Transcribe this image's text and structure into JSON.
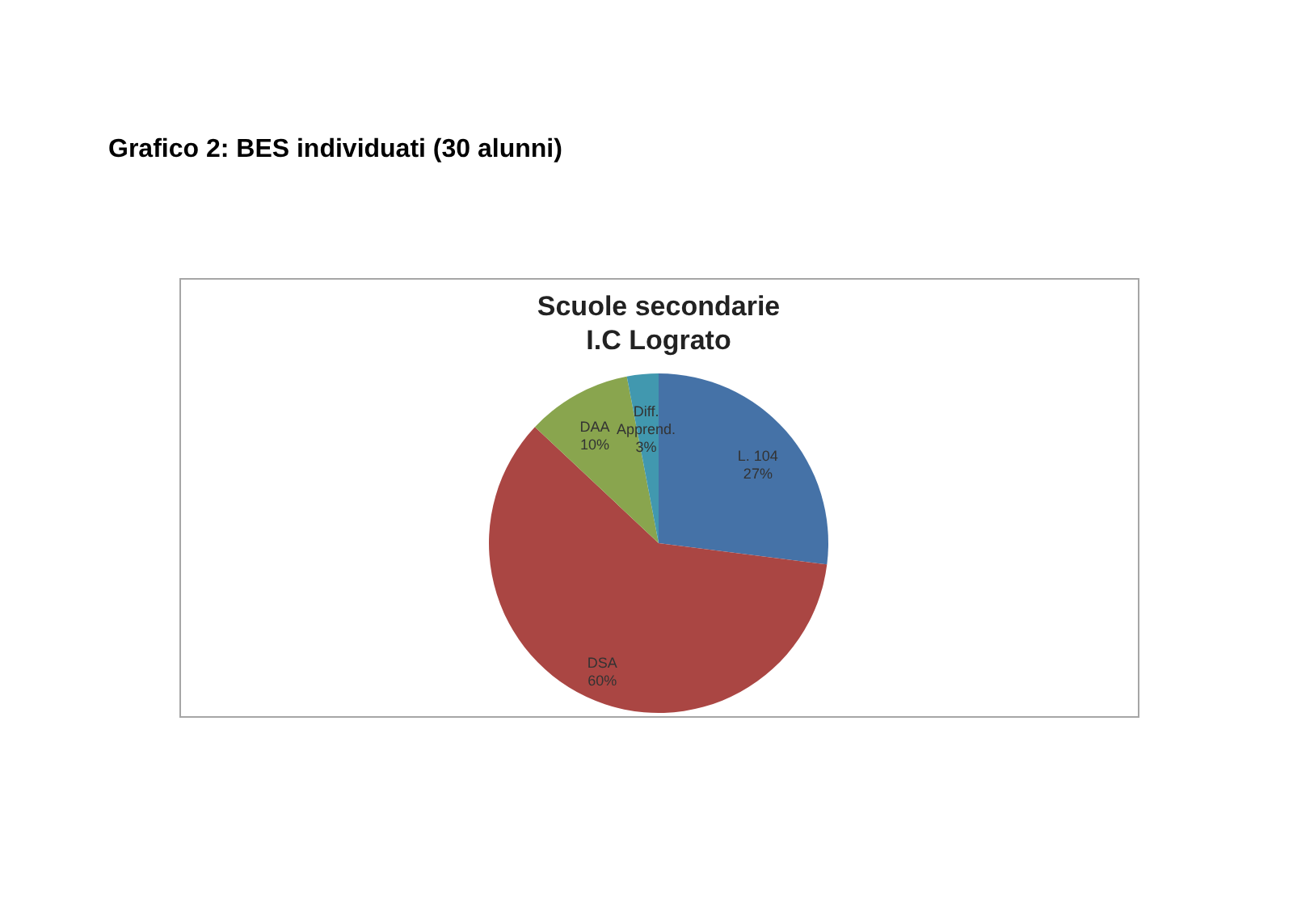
{
  "chart_data": {
    "type": "pie",
    "title": "Grafico 2: BES individuati (30 alunni)",
    "subtitle": "Scuole secondarie\nI.C Lograto",
    "categories": [
      "L. 104",
      "DSA",
      "DAA",
      "Diff. Apprend."
    ],
    "values": [
      27,
      60,
      10,
      3
    ],
    "value_labels": [
      "27%",
      "60%",
      "10%",
      "3%"
    ],
    "colors": [
      "#4572a7",
      "#aa4643",
      "#89a54e",
      "#4198af"
    ]
  }
}
